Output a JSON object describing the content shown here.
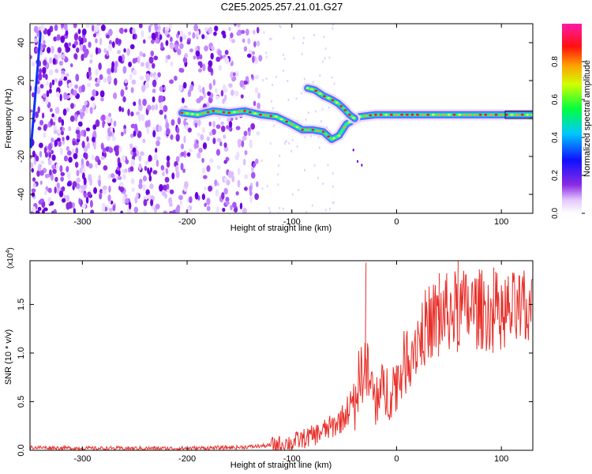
{
  "figure_title": "C2E5.2025.257.21.01.G27",
  "colors": {
    "snr_line": "#e8302a",
    "axis": "#000000"
  },
  "chart_data": [
    {
      "type": "heatmap",
      "name": "spectrogram",
      "xlabel": "Height of straight line (km)",
      "ylabel": "Frequency (Hz)",
      "xlim": [
        -350,
        130
      ],
      "ylim": [
        -50,
        50
      ],
      "xticks": [
        -300,
        -200,
        -100,
        0,
        100
      ],
      "yticks": [
        -40,
        -20,
        0,
        20,
        40
      ],
      "colorbar": {
        "label": "Normalized spectral amplitude",
        "range": [
          0,
          1
        ],
        "ticks": [
          0.0,
          0.2,
          0.4,
          0.6,
          0.8
        ],
        "tick_labels": [
          "0.0",
          "0.2",
          "0.4",
          "0.6",
          "0.8"
        ],
        "colormap": "rainbow (white-purple-blue-cyan-green-yellow-red-magenta)"
      },
      "main_trace": {
        "x": [
          -205,
          -190,
          -175,
          -160,
          -145,
          -130,
          -115,
          -100,
          -90,
          -80,
          -70,
          -62,
          -55,
          -48,
          -42,
          -35,
          -20,
          0,
          25,
          50,
          75,
          100,
          130
        ],
        "y": [
          3,
          2,
          4,
          3,
          4,
          2,
          1,
          -3,
          -6,
          -6,
          -7,
          -11,
          -9,
          -3,
          -1,
          1,
          2,
          2,
          2,
          2,
          2,
          2,
          2
        ]
      },
      "upper_branch": {
        "x": [
          -85,
          -78,
          -70,
          -62,
          -56,
          -50,
          -45,
          -40
        ],
        "y": [
          16,
          15,
          12,
          10,
          8,
          5,
          2,
          0
        ]
      }
    },
    {
      "type": "line",
      "name": "snr",
      "xlabel": "Height of straight line (km)",
      "ylabel": "SNR (10 * v/v)",
      "multiplier": "(x10",
      "multiplier_exp": "4",
      "multiplier_close": ")",
      "xlim": [
        -350,
        130
      ],
      "ylim": [
        0,
        1.95
      ],
      "xticks": [
        -300,
        -200,
        -100,
        0,
        100
      ],
      "yticks": [
        0.0,
        0.5,
        1.0,
        1.5
      ],
      "ytick_labels": [
        "0.0",
        "0.5",
        "1.0",
        "1.5"
      ],
      "series_envelope": {
        "x": [
          -350,
          -300,
          -200,
          -150,
          -120,
          -100,
          -80,
          -60,
          -50,
          -40,
          -35,
          -30,
          -25,
          -20,
          -10,
          0,
          10,
          20,
          30,
          40,
          50,
          60,
          80,
          100,
          130
        ],
        "y": [
          0.03,
          0.02,
          0.02,
          0.03,
          0.05,
          0.08,
          0.15,
          0.25,
          0.35,
          0.55,
          0.75,
          0.9,
          0.65,
          0.55,
          0.6,
          0.7,
          0.95,
          1.15,
          1.3,
          1.38,
          1.42,
          1.45,
          1.45,
          1.42,
          1.43
        ]
      },
      "peaks": [
        {
          "x": -30,
          "y": 1.93
        },
        {
          "x": 40,
          "y": 1.82
        },
        {
          "x": 58,
          "y": 1.95
        },
        {
          "x": 92,
          "y": 1.88
        }
      ]
    }
  ]
}
